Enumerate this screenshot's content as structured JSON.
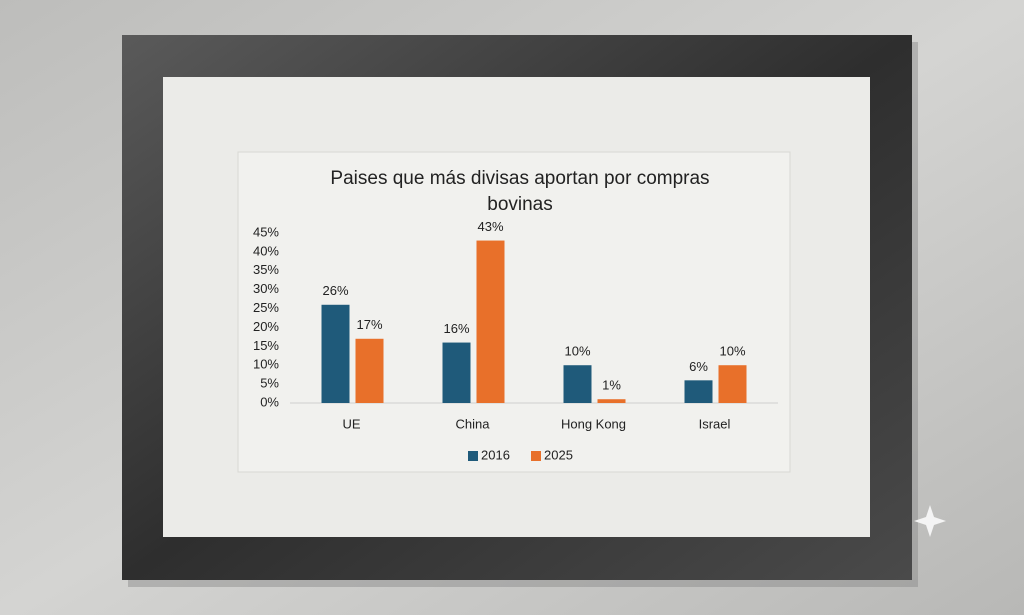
{
  "chart_data": {
    "type": "bar",
    "title": "Paises que más divisas aportan por compras bovinas",
    "categories": [
      "UE",
      "China",
      "Hong Kong",
      "Israel"
    ],
    "series": [
      {
        "name": "2016",
        "color": "#1f5a7a",
        "values": [
          26,
          16,
          10,
          6
        ],
        "value_labels": [
          "26%",
          "16%",
          "10%",
          "6%"
        ]
      },
      {
        "name": "2025",
        "color": "#e8702a",
        "values": [
          17,
          43,
          1,
          10
        ],
        "value_labels": [
          "17%",
          "43%",
          "1%",
          "10%"
        ]
      }
    ],
    "ylim": [
      0,
      45
    ],
    "yticks": [
      {
        "value": 0,
        "label": "0%"
      },
      {
        "value": 5,
        "label": "5%"
      },
      {
        "value": 10,
        "label": "10%"
      },
      {
        "value": 15,
        "label": "15%"
      },
      {
        "value": 20,
        "label": "20%"
      },
      {
        "value": 25,
        "label": "25%"
      },
      {
        "value": 30,
        "label": "30%"
      },
      {
        "value": 35,
        "label": "35%"
      },
      {
        "value": 40,
        "label": "40%"
      },
      {
        "value": 45,
        "label": "45%"
      }
    ],
    "legend": "bottom"
  }
}
